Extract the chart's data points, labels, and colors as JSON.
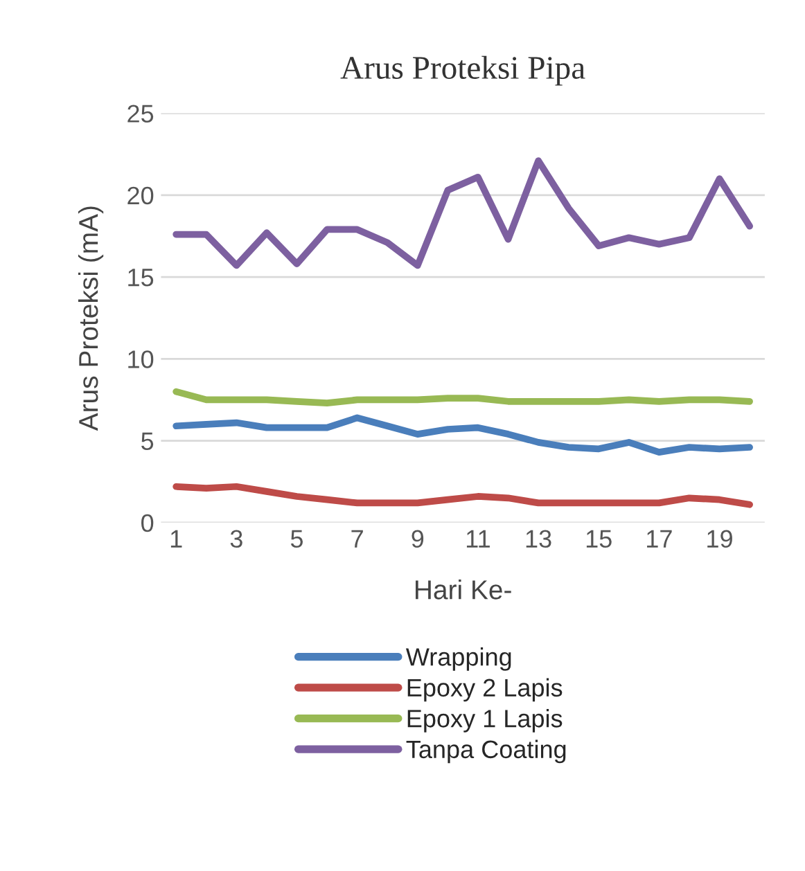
{
  "chart_data": {
    "type": "line",
    "title": "Arus Proteksi Pipa",
    "xlabel": "Hari Ke-",
    "ylabel": "Arus Proteksi (mA)",
    "categories": [
      "1",
      null,
      "3",
      null,
      "5",
      null,
      "7",
      null,
      "9",
      null,
      "11",
      null,
      "13",
      null,
      "15",
      null,
      "17",
      null,
      "19",
      null
    ],
    "series": [
      {
        "name": "Wrapping",
        "color": "#4a7ebb",
        "values": [
          5.9,
          6.0,
          6.1,
          5.8,
          5.8,
          5.8,
          6.4,
          5.9,
          5.4,
          5.7,
          5.8,
          5.4,
          4.9,
          4.6,
          4.5,
          4.9,
          4.3,
          4.6,
          4.5,
          4.6
        ]
      },
      {
        "name": "Epoxy 2 Lapis",
        "color": "#be4b48",
        "values": [
          2.2,
          2.1,
          2.2,
          1.9,
          1.6,
          1.4,
          1.2,
          1.2,
          1.2,
          1.4,
          1.6,
          1.5,
          1.2,
          1.2,
          1.2,
          1.2,
          1.2,
          1.5,
          1.4,
          1.1
        ]
      },
      {
        "name": "Epoxy 1 Lapis",
        "color": "#98b954",
        "values": [
          8.0,
          7.5,
          7.5,
          7.5,
          7.4,
          7.3,
          7.5,
          7.5,
          7.5,
          7.6,
          7.6,
          7.4,
          7.4,
          7.4,
          7.4,
          7.5,
          7.4,
          7.5,
          7.5,
          7.4
        ]
      },
      {
        "name": "Tanpa Coating",
        "color": "#7d60a0",
        "values": [
          17.6,
          17.6,
          15.7,
          17.7,
          15.8,
          17.9,
          17.9,
          17.1,
          15.7,
          20.3,
          21.1,
          17.3,
          22.1,
          19.2,
          16.9,
          17.4,
          17.0,
          17.4,
          21.0,
          18.1
        ]
      }
    ],
    "ylim": [
      0,
      25
    ],
    "yticks": [
      0,
      5,
      10,
      15,
      20,
      25
    ],
    "grid": "y",
    "legend": "bottom",
    "marker": "none",
    "line_style": "solid"
  }
}
